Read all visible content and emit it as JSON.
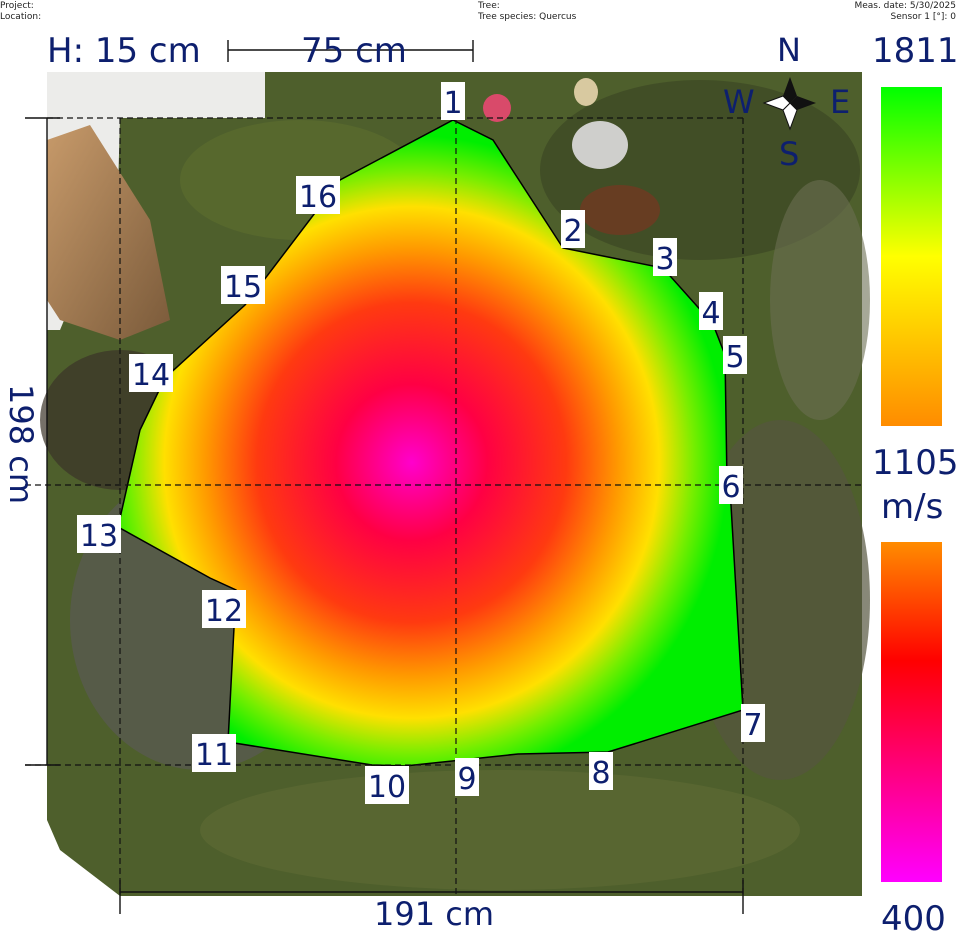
{
  "header": {
    "project_label": "Project:",
    "location_label": "Location:",
    "tree_label": "Tree:",
    "species_label": "Tree species: Quercus",
    "meas_date": "Meas. date: 5/30/2025",
    "sensor_info": "Sensor 1 [°]: 0"
  },
  "height_label": "H: 15 cm",
  "scale_bar_label": "75 cm",
  "width_label": "191 cm",
  "depth_label": "198 cm",
  "compass": {
    "n": "N",
    "s": "S",
    "e": "E",
    "w": "W"
  },
  "legend": {
    "max": "1811",
    "mid": "1105",
    "unit": "m/s",
    "min": "400",
    "colors": {
      "high": "#00ff00",
      "upper_mid": "#ffff00",
      "mid": "#ff8c00",
      "low": "#ff0000",
      "min": "#ff00ff"
    }
  },
  "sensors": [
    "1",
    "2",
    "3",
    "4",
    "5",
    "6",
    "7",
    "8",
    "9",
    "10",
    "11",
    "12",
    "13",
    "14",
    "15",
    "16"
  ]
}
